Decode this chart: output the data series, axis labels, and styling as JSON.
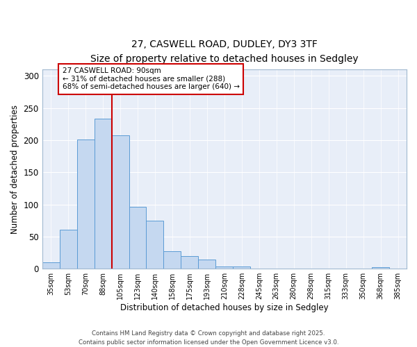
{
  "title": "27, CASWELL ROAD, DUDLEY, DY3 3TF",
  "subtitle": "Size of property relative to detached houses in Sedgley",
  "xlabel": "Distribution of detached houses by size in Sedgley",
  "ylabel": "Number of detached properties",
  "bar_labels": [
    "35sqm",
    "53sqm",
    "70sqm",
    "88sqm",
    "105sqm",
    "123sqm",
    "140sqm",
    "158sqm",
    "175sqm",
    "193sqm",
    "210sqm",
    "228sqm",
    "245sqm",
    "263sqm",
    "280sqm",
    "298sqm",
    "315sqm",
    "333sqm",
    "350sqm",
    "368sqm",
    "385sqm"
  ],
  "bar_values": [
    10,
    61,
    201,
    233,
    208,
    96,
    75,
    27,
    20,
    14,
    3,
    4,
    0,
    0,
    0,
    0,
    0,
    0,
    0,
    2,
    0
  ],
  "bar_color": "#c5d8f0",
  "bar_edge_color": "#5b9bd5",
  "vline_x_index": 3.5,
  "property_line_label": "27 CASWELL ROAD: 90sqm",
  "annotation_line1": "← 31% of detached houses are smaller (288)",
  "annotation_line2": "68% of semi-detached houses are larger (640) →",
  "vline_color": "#cc0000",
  "ylim": [
    0,
    310
  ],
  "yticks": [
    0,
    50,
    100,
    150,
    200,
    250,
    300
  ],
  "background_color": "#e8eef8",
  "grid_color": "#ffffff",
  "footer1": "Contains HM Land Registry data © Crown copyright and database right 2025.",
  "footer2": "Contains public sector information licensed under the Open Government Licence v3.0."
}
